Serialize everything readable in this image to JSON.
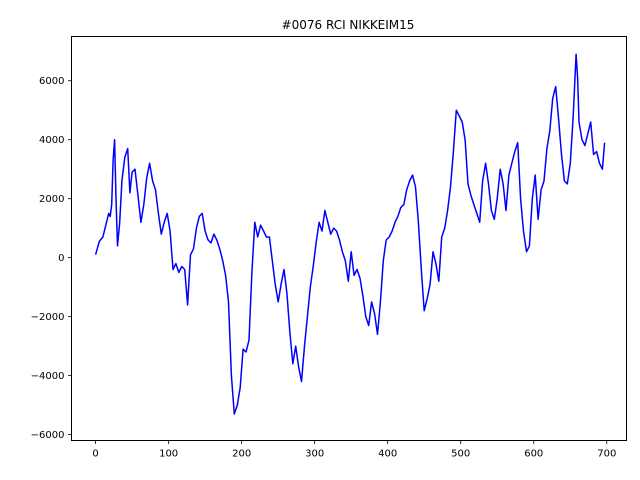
{
  "chart_data": {
    "type": "line",
    "title": "#0076 RCI NIKKEIM15",
    "xlabel": "",
    "ylabel": "",
    "xlim": [
      -33,
      727
    ],
    "ylim": [
      -6200,
      7500
    ],
    "xticks": [
      0,
      100,
      200,
      300,
      400,
      500,
      600,
      700
    ],
    "yticks": [
      -6000,
      -4000,
      -2000,
      0,
      2000,
      4000,
      6000
    ],
    "grid": false,
    "series": [
      {
        "color": "#0000ff",
        "x": [
          0,
          5,
          10,
          14,
          18,
          20,
          22,
          24,
          26,
          28,
          30,
          33,
          36,
          40,
          44,
          47,
          50,
          54,
          58,
          62,
          66,
          70,
          74,
          78,
          82,
          86,
          90,
          94,
          98,
          102,
          106,
          110,
          114,
          118,
          122,
          126,
          130,
          134,
          138,
          142,
          146,
          150,
          154,
          158,
          162,
          166,
          170,
          174,
          178,
          182,
          186,
          190,
          194,
          198,
          202,
          206,
          210,
          214,
          218,
          222,
          226,
          230,
          234,
          238,
          242,
          246,
          250,
          254,
          258,
          262,
          266,
          270,
          274,
          278,
          282,
          286,
          290,
          294,
          298,
          302,
          306,
          310,
          314,
          318,
          322,
          326,
          330,
          334,
          338,
          342,
          346,
          350,
          354,
          358,
          362,
          366,
          370,
          374,
          378,
          382,
          386,
          390,
          394,
          398,
          402,
          406,
          410,
          414,
          418,
          422,
          426,
          430,
          434,
          438,
          442,
          446,
          450,
          454,
          458,
          462,
          466,
          470,
          474,
          478,
          482,
          486,
          490,
          494,
          498,
          502,
          506,
          510,
          514,
          518,
          522,
          526,
          530,
          534,
          538,
          542,
          546,
          550,
          554,
          558,
          562,
          566,
          570,
          574,
          578,
          582,
          586,
          590,
          594,
          598,
          602,
          606,
          610,
          614,
          618,
          622,
          626,
          630,
          634,
          638,
          642,
          646,
          650,
          654,
          658,
          660,
          662,
          666,
          670,
          674,
          678,
          682,
          686,
          690,
          694,
          697
        ],
        "y": [
          100,
          550,
          700,
          1100,
          1500,
          1400,
          1800,
          3300,
          4000,
          2000,
          400,
          1200,
          2600,
          3400,
          3700,
          2200,
          2900,
          3000,
          2100,
          1200,
          1800,
          2700,
          3200,
          2600,
          2300,
          1500,
          800,
          1200,
          1500,
          900,
          -400,
          -200,
          -500,
          -300,
          -400,
          -1600,
          100,
          300,
          1000,
          1400,
          1500,
          900,
          600,
          500,
          800,
          600,
          300,
          -100,
          -600,
          -1500,
          -4000,
          -5300,
          -5000,
          -4400,
          -3100,
          -3200,
          -2800,
          -500,
          1200,
          700,
          1100,
          900,
          700,
          700,
          -100,
          -900,
          -1500,
          -900,
          -400,
          -1200,
          -2500,
          -3600,
          -3000,
          -3700,
          -4200,
          -3000,
          -2000,
          -1000,
          -300,
          500,
          1200,
          900,
          1600,
          1200,
          800,
          1000,
          900,
          600,
          200,
          -100,
          -800,
          200,
          -600,
          -400,
          -700,
          -1300,
          -2000,
          -2300,
          -1500,
          -1900,
          -2600,
          -1500,
          -100,
          600,
          700,
          900,
          1200,
          1400,
          1700,
          1800,
          2300,
          2600,
          2800,
          2400,
          1200,
          -400,
          -1800,
          -1400,
          -900,
          200,
          -200,
          -800,
          700,
          1000,
          1600,
          2400,
          3600,
          5000,
          4800,
          4600,
          4000,
          2500,
          2100,
          1800,
          1500,
          1200,
          2600,
          3200,
          2500,
          1600,
          1300,
          2000,
          3000,
          2500,
          1600,
          2800,
          3200,
          3600,
          3900,
          2000,
          900,
          200,
          400,
          2000,
          2800,
          1300,
          2300,
          2600,
          3700,
          4300,
          5400,
          5800,
          4700,
          3500,
          2600,
          2500,
          3200,
          4800,
          6900,
          6100,
          4600,
          4000,
          3800,
          4200,
          4600,
          3500,
          3600,
          3200,
          3000,
          3900
        ]
      }
    ]
  }
}
